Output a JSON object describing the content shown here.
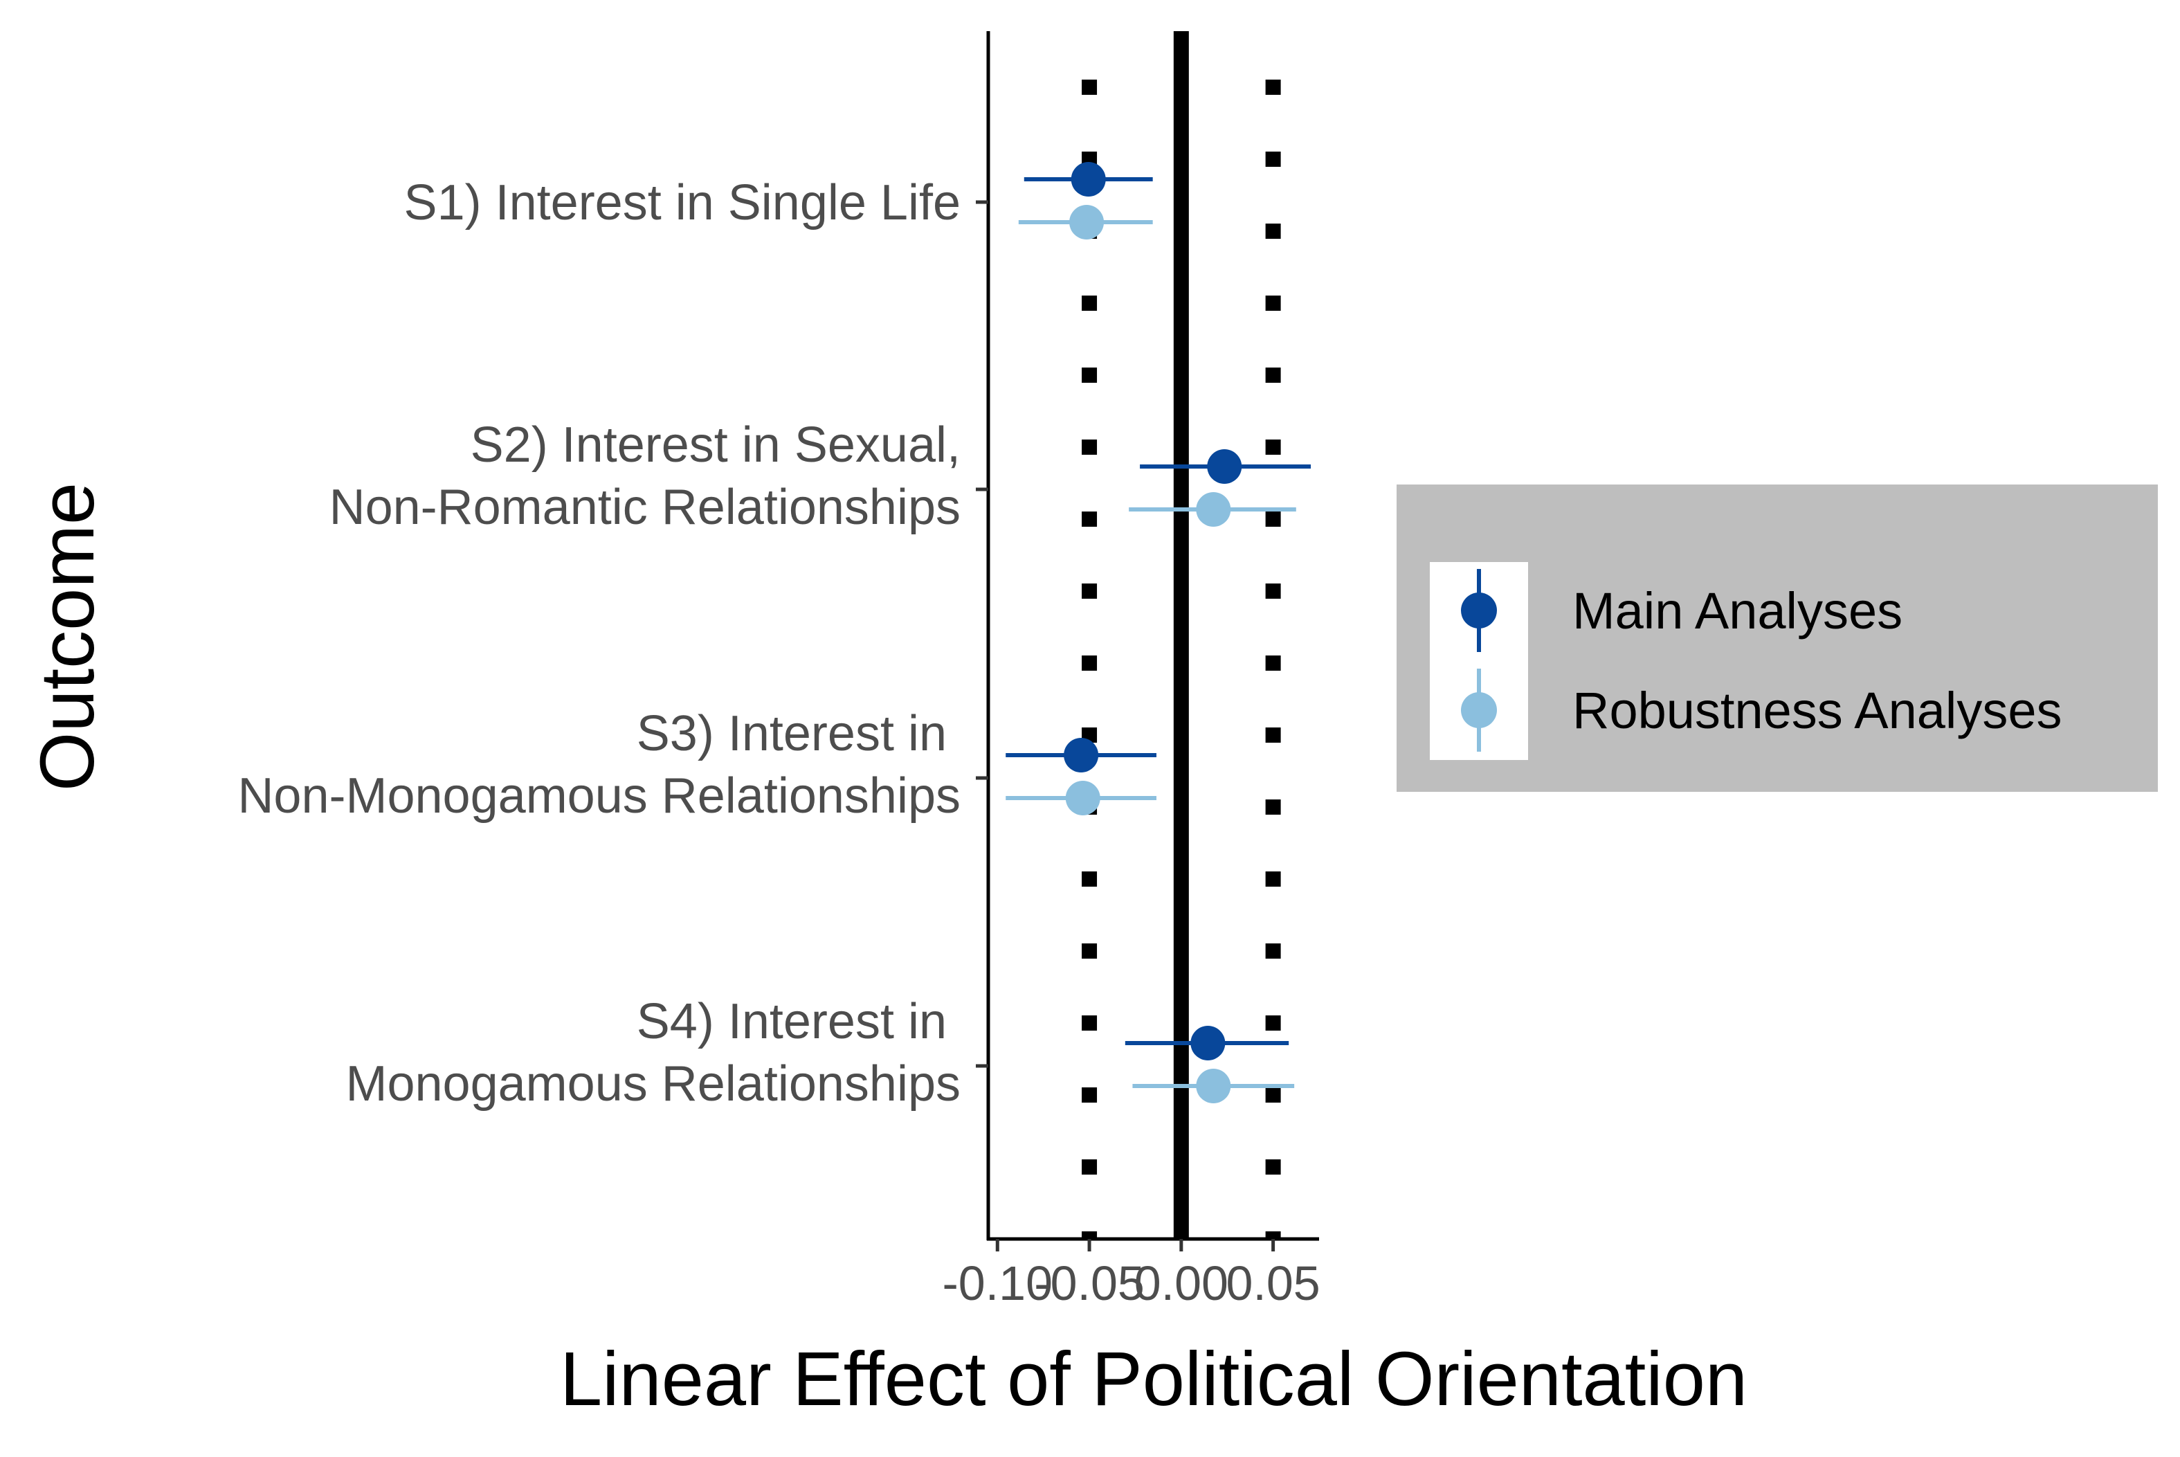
{
  "chart_data": {
    "type": "scatter",
    "xlabel": "Linear Effect of Political Orientation",
    "ylabel": "Outcome",
    "xlim": [
      -0.105,
      0.075
    ],
    "x_ticks": [
      -0.1,
      -0.05,
      0.0,
      0.05
    ],
    "x_tick_labels": [
      "-0.10",
      "-0.05",
      "0.00",
      "0.05"
    ],
    "reference_lines": [
      {
        "x": 0.0,
        "style": "solid"
      },
      {
        "x": -0.05,
        "style": "dotted"
      },
      {
        "x": 0.05,
        "style": "dotted"
      }
    ],
    "categories": [
      {
        "lines": [
          "S1) Interest in Single Life"
        ]
      },
      {
        "lines": [
          "S2) Interest in Sexual,",
          "Non-Romantic Relationships"
        ]
      },
      {
        "lines": [
          "S3) Interest in ",
          "Non-Monogamous Relationships"
        ]
      },
      {
        "lines": [
          "S4) Interest in ",
          "Monogamous Relationships"
        ]
      }
    ],
    "series": [
      {
        "name": "Main Analyses",
        "color": "#08479a",
        "points": [
          {
            "estimate": -0.0505,
            "low": -0.0855,
            "high": -0.0155
          },
          {
            "estimate": 0.0235,
            "low": -0.0225,
            "high": 0.0705
          },
          {
            "estimate": -0.0545,
            "low": -0.0955,
            "high": -0.0135
          },
          {
            "estimate": 0.0145,
            "low": -0.0305,
            "high": 0.0585
          }
        ]
      },
      {
        "name": "Robustness Analyses",
        "color": "#8bbfde",
        "points": [
          {
            "estimate": -0.0515,
            "low": -0.0885,
            "high": -0.0155
          },
          {
            "estimate": 0.0175,
            "low": -0.0285,
            "high": 0.0625
          },
          {
            "estimate": -0.0535,
            "low": -0.0955,
            "high": -0.0135
          },
          {
            "estimate": 0.0175,
            "low": -0.0265,
            "high": 0.0615
          }
        ]
      }
    ],
    "legend": {
      "placement": "right",
      "background": "#bebebe",
      "key_background": "#ffffff"
    },
    "grid": false
  }
}
